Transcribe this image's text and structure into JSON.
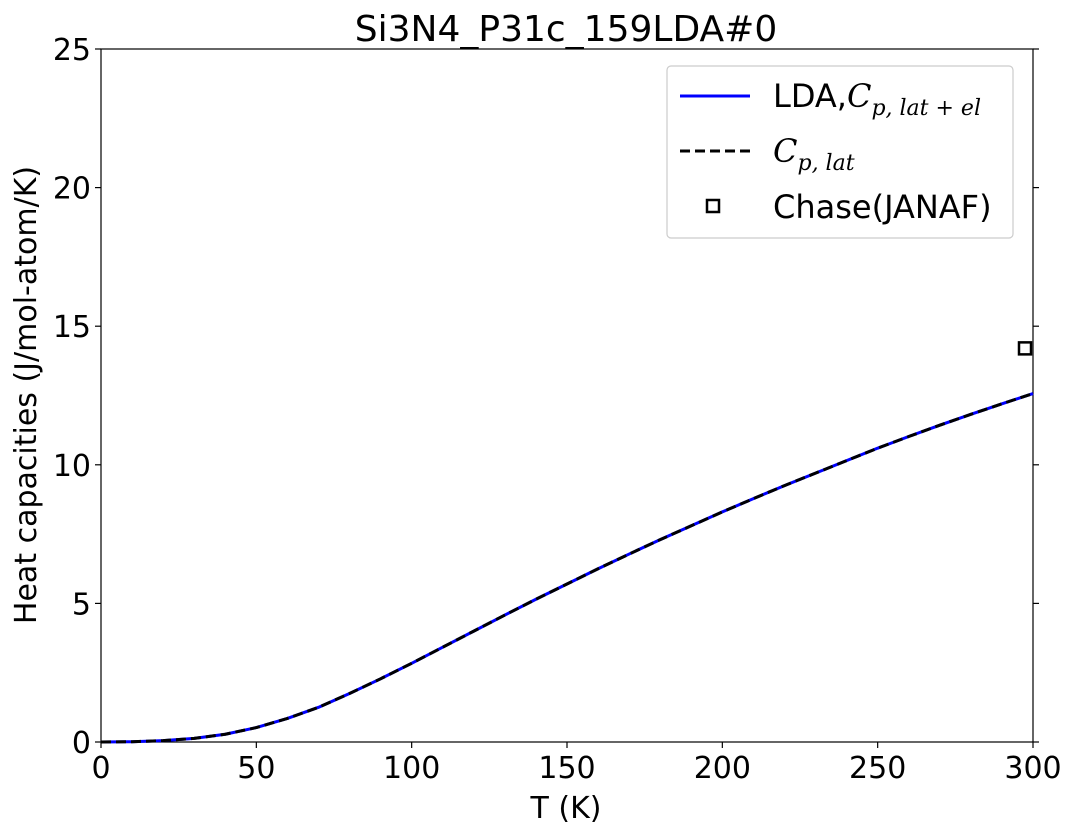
{
  "chart_data": {
    "type": "line",
    "title": "Si3N4_P31c_159LDA#0",
    "xlabel": "T (K)",
    "ylabel": "Heat capacities (J/mol-atom/K)",
    "xlim": [
      0,
      300
    ],
    "ylim": [
      0,
      25
    ],
    "xticks": [
      0,
      50,
      100,
      150,
      200,
      250,
      300
    ],
    "yticks": [
      0,
      5,
      10,
      15,
      20,
      25
    ],
    "xtick_labels": [
      "0",
      "50",
      "100",
      "150",
      "200",
      "250",
      "300"
    ],
    "ytick_labels": [
      "0",
      "5",
      "10",
      "15",
      "20",
      "25"
    ],
    "grid": false,
    "legend_position": "top-right",
    "series": [
      {
        "name": "LDA,C_{p,lat+el}",
        "legend_prefix": "LDA,",
        "legend_symbol": "C",
        "legend_subscript": "p, lat + el",
        "style": "solid",
        "color": "#0000ff",
        "x": [
          0,
          10,
          20,
          30,
          40,
          50,
          60,
          70,
          80,
          90,
          100,
          110,
          120,
          130,
          140,
          150,
          160,
          170,
          180,
          190,
          200,
          210,
          220,
          230,
          240,
          250,
          260,
          270,
          280,
          290,
          300
        ],
        "y": [
          0,
          0.01,
          0.05,
          0.13,
          0.28,
          0.52,
          0.85,
          1.25,
          1.75,
          2.28,
          2.84,
          3.42,
          4.0,
          4.58,
          5.15,
          5.7,
          6.25,
          6.78,
          7.3,
          7.8,
          8.3,
          8.78,
          9.25,
          9.7,
          10.15,
          10.6,
          11.02,
          11.43,
          11.82,
          12.2,
          12.57
        ]
      },
      {
        "name": "C_{p,lat}",
        "legend_prefix": "",
        "legend_symbol": "C",
        "legend_subscript": "p, lat",
        "style": "dashed",
        "color": "#000000",
        "x": [
          0,
          10,
          20,
          30,
          40,
          50,
          60,
          70,
          80,
          90,
          100,
          110,
          120,
          130,
          140,
          150,
          160,
          170,
          180,
          190,
          200,
          210,
          220,
          230,
          240,
          250,
          260,
          270,
          280,
          290,
          300
        ],
        "y": [
          0,
          0.01,
          0.05,
          0.13,
          0.28,
          0.52,
          0.85,
          1.25,
          1.75,
          2.28,
          2.84,
          3.42,
          4.0,
          4.58,
          5.15,
          5.7,
          6.25,
          6.78,
          7.3,
          7.8,
          8.3,
          8.78,
          9.25,
          9.7,
          10.15,
          10.6,
          11.02,
          11.43,
          11.82,
          12.2,
          12.57
        ]
      },
      {
        "name": "Chase(JANAF)",
        "style": "marker-square",
        "color": "#000000",
        "x": [
          298.15
        ],
        "y": [
          14.2
        ]
      }
    ]
  }
}
